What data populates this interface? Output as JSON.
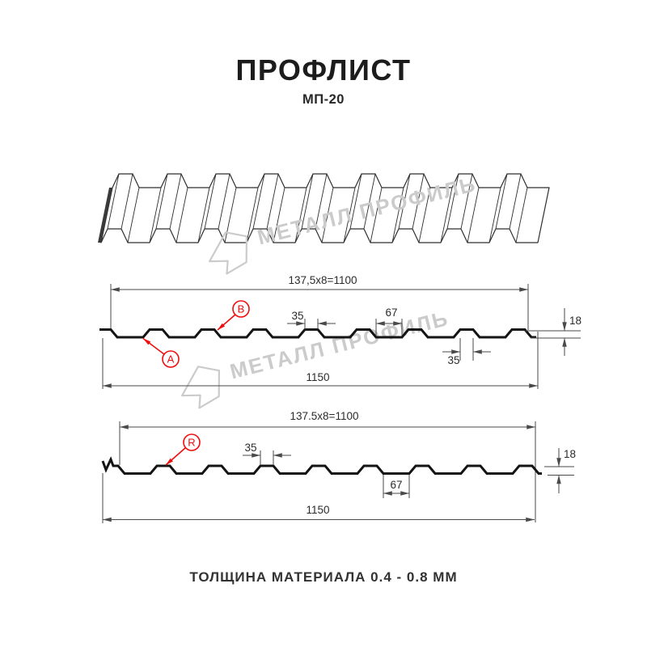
{
  "header": {
    "title": "ПРОФЛИСТ",
    "subtitle": "МП-20"
  },
  "watermark": {
    "text": "МЕТАЛЛ ПРОФИЛЬ"
  },
  "diagram": {
    "section_ab": {
      "pitch_formula": "137,5x8=1100",
      "overall_width": "1150",
      "rib_top_width": "35",
      "rib_gap_width": "67",
      "height": "18",
      "rib_bottom_width": "35",
      "marker_a": "A",
      "marker_b": "B"
    },
    "section_r": {
      "pitch_formula": "137.5x8=1100",
      "overall_width": "1150",
      "rib_top_width": "35",
      "rib_gap_width": "67",
      "height": "18",
      "marker_r": "R"
    }
  },
  "footer": {
    "text": "ТОЛЩИНА МАТЕРИАЛА 0.4 - 0.8 ММ"
  },
  "colors": {
    "accent_red": "#ee0e0e",
    "line_gray": "#4a4a4a",
    "profile_black": "#141414",
    "watermark_gray": "#cbcbcb"
  }
}
